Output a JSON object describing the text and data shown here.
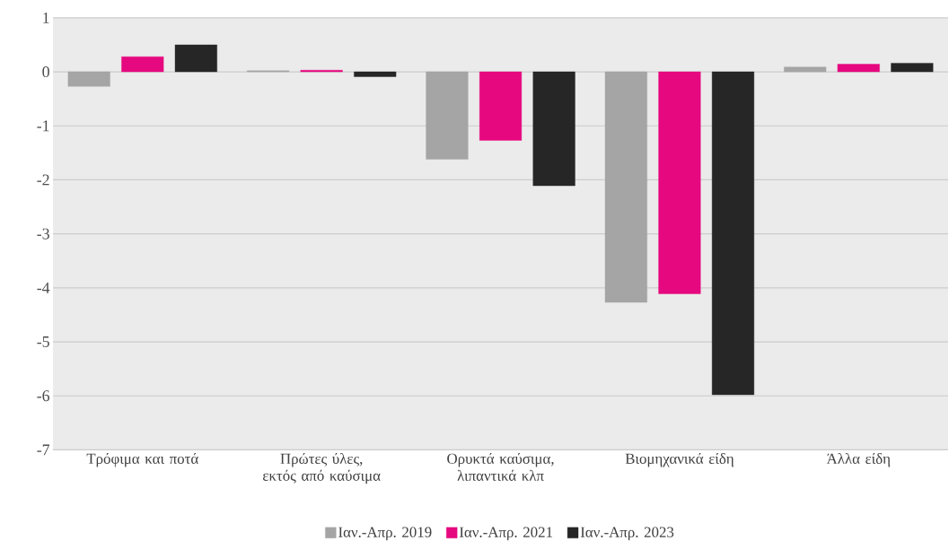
{
  "chart_data": {
    "type": "bar",
    "categories": [
      "Τρόφιμα και ποτά",
      "Πρώτες ύλες, εκτός από καύσιμα",
      "Ορυκτά καύσιμα, λιπαντικά κλπ",
      "Βιομηχανικά είδη",
      "Άλλα είδη"
    ],
    "series": [
      {
        "name": "Ιαν.-Απρ. 2019",
        "color": "#a5a5a5",
        "values": [
          -0.27,
          0.02,
          -1.62,
          -4.27,
          0.09
        ]
      },
      {
        "name": "Ιαν.-Απρ. 2021",
        "color": "#e6087f",
        "values": [
          0.28,
          0.03,
          -1.27,
          -4.11,
          0.14
        ]
      },
      {
        "name": "Ιαν.-Απρ. 2023",
        "color": "#262626",
        "values": [
          0.5,
          -0.09,
          -2.11,
          -5.98,
          0.16
        ]
      }
    ],
    "ylim": [
      -7,
      1
    ],
    "yticks": [
      -7,
      -6,
      -5,
      -4,
      -3,
      -2,
      -1,
      0,
      1
    ],
    "grid": "y",
    "legend": "bottom"
  }
}
